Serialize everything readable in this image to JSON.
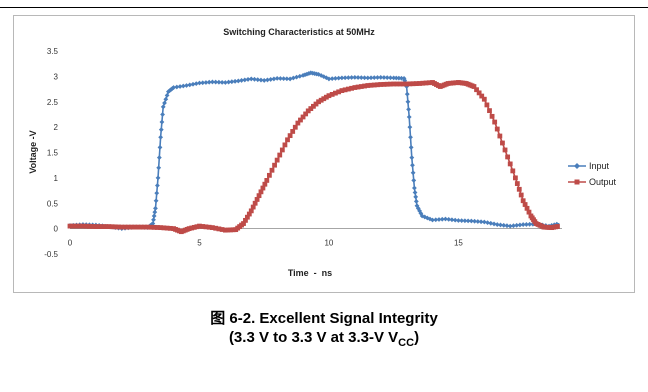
{
  "chart_data": {
    "type": "line",
    "title": "Switching Characteristics at 50MHz",
    "xlabel": "Time  -  ns",
    "ylabel": "Voltage -V",
    "xlim": [
      0,
      19
    ],
    "ylim": [
      -0.5,
      3.5
    ],
    "x_ticks": [
      "0",
      "5",
      "10",
      "15"
    ],
    "x_tick_values": [
      0,
      5,
      10,
      15
    ],
    "y_ticks": [
      "3.5",
      "3",
      "2.5",
      "2",
      "1.5",
      "1",
      "0.5",
      "0",
      "-0.5"
    ],
    "y_tick_values": [
      3.5,
      3,
      2.5,
      2,
      1.5,
      1,
      0.5,
      0,
      -0.5
    ],
    "grid": false,
    "legend_position": "right",
    "series": [
      {
        "name": "Input",
        "color": "#4a7ebb",
        "marker": "diamond",
        "points": [
          [
            0,
            0.06
          ],
          [
            0.5,
            0.08
          ],
          [
            1.0,
            0.07
          ],
          [
            1.5,
            0.04
          ],
          [
            2.0,
            0.0
          ],
          [
            2.5,
            0.03
          ],
          [
            3.0,
            0.02
          ],
          [
            3.2,
            0.1
          ],
          [
            3.3,
            0.4
          ],
          [
            3.4,
            1.0
          ],
          [
            3.5,
            1.8
          ],
          [
            3.6,
            2.4
          ],
          [
            3.8,
            2.7
          ],
          [
            4.0,
            2.78
          ],
          [
            4.5,
            2.82
          ],
          [
            5.0,
            2.87
          ],
          [
            5.5,
            2.89
          ],
          [
            6.0,
            2.88
          ],
          [
            6.5,
            2.91
          ],
          [
            7.0,
            2.95
          ],
          [
            7.5,
            2.92
          ],
          [
            8.0,
            2.96
          ],
          [
            8.5,
            2.95
          ],
          [
            9.0,
            3.02
          ],
          [
            9.3,
            3.07
          ],
          [
            9.6,
            3.04
          ],
          [
            10.0,
            2.95
          ],
          [
            10.5,
            2.97
          ],
          [
            11.0,
            2.98
          ],
          [
            11.5,
            2.97
          ],
          [
            12.0,
            2.98
          ],
          [
            12.5,
            2.97
          ],
          [
            12.9,
            2.96
          ],
          [
            13.0,
            2.8
          ],
          [
            13.1,
            2.2
          ],
          [
            13.2,
            1.4
          ],
          [
            13.3,
            0.8
          ],
          [
            13.4,
            0.45
          ],
          [
            13.6,
            0.25
          ],
          [
            14.0,
            0.17
          ],
          [
            14.5,
            0.19
          ],
          [
            15.0,
            0.16
          ],
          [
            15.5,
            0.15
          ],
          [
            16.0,
            0.13
          ],
          [
            16.5,
            0.08
          ],
          [
            17.0,
            0.05
          ],
          [
            17.5,
            0.08
          ],
          [
            18.0,
            0.09
          ],
          [
            18.5,
            0.05
          ],
          [
            18.9,
            0.1
          ]
        ]
      },
      {
        "name": "Output",
        "color": "#be4b48",
        "marker": "square",
        "points": [
          [
            0,
            0.05
          ],
          [
            0.5,
            0.05
          ],
          [
            1.0,
            0.04
          ],
          [
            1.5,
            0.04
          ],
          [
            2.0,
            0.03
          ],
          [
            2.5,
            0.03
          ],
          [
            3.0,
            0.03
          ],
          [
            3.5,
            0.02
          ],
          [
            4.0,
            0.0
          ],
          [
            4.3,
            -0.06
          ],
          [
            4.6,
            0.0
          ],
          [
            5.0,
            0.05
          ],
          [
            5.5,
            0.02
          ],
          [
            6.0,
            -0.03
          ],
          [
            6.4,
            -0.02
          ],
          [
            6.7,
            0.1
          ],
          [
            7.0,
            0.35
          ],
          [
            7.3,
            0.65
          ],
          [
            7.6,
            0.95
          ],
          [
            8.0,
            1.35
          ],
          [
            8.4,
            1.75
          ],
          [
            8.8,
            2.08
          ],
          [
            9.2,
            2.32
          ],
          [
            9.6,
            2.5
          ],
          [
            10.0,
            2.62
          ],
          [
            10.5,
            2.72
          ],
          [
            11.0,
            2.78
          ],
          [
            11.5,
            2.82
          ],
          [
            12.0,
            2.84
          ],
          [
            12.5,
            2.85
          ],
          [
            13.0,
            2.85
          ],
          [
            13.5,
            2.86
          ],
          [
            14.0,
            2.88
          ],
          [
            14.3,
            2.8
          ],
          [
            14.6,
            2.86
          ],
          [
            15.0,
            2.88
          ],
          [
            15.3,
            2.86
          ],
          [
            15.6,
            2.8
          ],
          [
            16.0,
            2.55
          ],
          [
            16.4,
            2.1
          ],
          [
            16.8,
            1.55
          ],
          [
            17.2,
            1.0
          ],
          [
            17.5,
            0.55
          ],
          [
            17.8,
            0.25
          ],
          [
            18.0,
            0.1
          ],
          [
            18.3,
            0.03
          ],
          [
            18.6,
            0.02
          ],
          [
            18.9,
            0.05
          ]
        ]
      }
    ]
  },
  "caption": {
    "figure_label": "图",
    "line1": "6-2. Excellent Signal Integrity",
    "line2_pre": "(3.3 V to 3.3 V at 3.3-V V",
    "line2_sub": "CC",
    "line2_post": ")"
  }
}
